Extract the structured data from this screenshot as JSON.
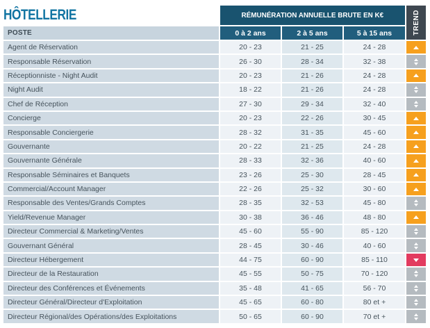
{
  "title": "HÔTELLERIE",
  "table": {
    "poste_header": "POSTE",
    "group_header": "RÉMUNÉRATION ANNUELLE BRUTE EN K€",
    "trend_header": "TREND",
    "experience_columns": [
      "0 à 2 ans",
      "2 à 5 ans",
      "5 à 15 ans"
    ],
    "rows": [
      {
        "poste": "Agent de Réservation",
        "salaries": [
          "20 - 23",
          "21 - 25",
          "24 - 28"
        ],
        "trend": "up"
      },
      {
        "poste": "Responsable Réservation",
        "salaries": [
          "26 - 30",
          "28 - 34",
          "32 - 38"
        ],
        "trend": "stable"
      },
      {
        "poste": "Réceptionniste - Night Audit",
        "salaries": [
          "20 - 23",
          "21 - 26",
          "24 - 28"
        ],
        "trend": "up"
      },
      {
        "poste": "Night Audit",
        "salaries": [
          "18 - 22",
          "21 - 26",
          "24 - 28"
        ],
        "trend": "stable"
      },
      {
        "poste": "Chef de Réception",
        "salaries": [
          "27 - 30",
          "29 - 34",
          "32 - 40"
        ],
        "trend": "stable"
      },
      {
        "poste": "Concierge",
        "salaries": [
          "20 - 23",
          "22 - 26",
          "30 - 45"
        ],
        "trend": "up"
      },
      {
        "poste": "Responsable Conciergerie",
        "salaries": [
          "28 - 32",
          "31 - 35",
          "45 - 60"
        ],
        "trend": "up"
      },
      {
        "poste": "Gouvernante",
        "salaries": [
          "20 - 22",
          "21 - 25",
          "24 - 28"
        ],
        "trend": "up"
      },
      {
        "poste": "Gouvernante Générale",
        "salaries": [
          "28 - 33",
          "32 - 36",
          "40 - 60"
        ],
        "trend": "up"
      },
      {
        "poste": "Responsable Séminaires et Banquets",
        "salaries": [
          "23 - 26",
          "25 - 30",
          "28 - 45"
        ],
        "trend": "up"
      },
      {
        "poste": "Commercial/Account Manager",
        "salaries": [
          "22 - 26",
          "25 - 32",
          "30 - 60"
        ],
        "trend": "up"
      },
      {
        "poste": "Responsable des Ventes/Grands Comptes",
        "salaries": [
          "28 - 35",
          "32 - 53",
          "45 - 80"
        ],
        "trend": "stable"
      },
      {
        "poste": "Yield/Revenue Manager",
        "salaries": [
          "30 - 38",
          "36 - 46",
          "48 - 80"
        ],
        "trend": "up"
      },
      {
        "poste": "Directeur Commercial & Marketing/Ventes",
        "salaries": [
          "45 - 60",
          "55 - 90",
          "85 - 120"
        ],
        "trend": "stable"
      },
      {
        "poste": "Gouvernant Général",
        "salaries": [
          "28 - 45",
          "30 - 46",
          "40 - 60"
        ],
        "trend": "stable"
      },
      {
        "poste": "Directeur Hébergement",
        "salaries": [
          "44 - 75",
          "60 - 90",
          "85 - 110"
        ],
        "trend": "down"
      },
      {
        "poste": "Directeur de la Restauration",
        "salaries": [
          "45 - 55",
          "50 - 75",
          "70 - 120"
        ],
        "trend": "stable"
      },
      {
        "poste": "Directeur des Conférences et Événements",
        "salaries": [
          "35 - 48",
          "41 - 65",
          "56 - 70"
        ],
        "trend": "stable"
      },
      {
        "poste": "Directeur Général/Directeur d'Exploitation",
        "salaries": [
          "45 - 65",
          "60 - 80",
          "80 et +"
        ],
        "trend": "stable"
      },
      {
        "poste": "Directeur Régional/des Opérations/des Exploitations",
        "salaries": [
          "50 - 65",
          "60 - 90",
          "70 et +"
        ],
        "trend": "stable"
      }
    ]
  },
  "colors": {
    "title_blue": "#1174a2",
    "group_header_teal": "#19536f",
    "subheader_teal": "#215e7d",
    "trend_header_gray": "#3e4750",
    "poste_header_bg": "#c7d4de",
    "row_label_bg": "#cfdae3",
    "cell_light_bg": "#eef2f6",
    "cell_mid_bg": "#dee8ee",
    "trend_up_orange": "#f6a01e",
    "trend_stable_gray": "#b5bbc0",
    "trend_down_red": "#e23b5f",
    "text_color": "#46535c"
  }
}
